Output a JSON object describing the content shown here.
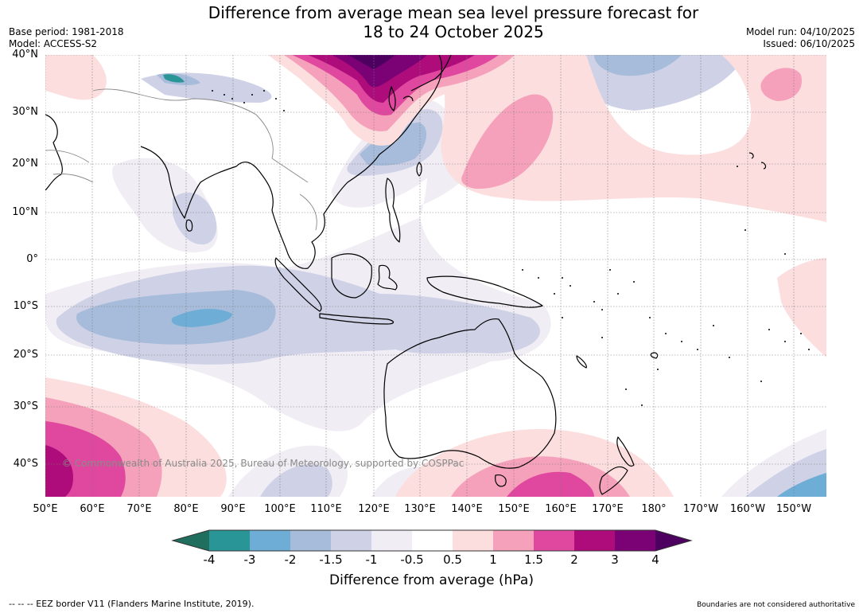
{
  "title": {
    "line1": "Difference from average mean sea level pressure forecast for",
    "line2": "18 to 24 October 2025"
  },
  "meta_left": {
    "base_period": "Base period: 1981-2018",
    "model": "Model: ACCESS-S2"
  },
  "meta_right": {
    "model_run": "Model run: 04/10/2025",
    "issued": "Issued: 06/10/2025"
  },
  "map": {
    "lat_labels": [
      "40°N",
      "30°N",
      "20°N",
      "10°N",
      "0°",
      "10°S",
      "20°S",
      "30°S",
      "40°S"
    ],
    "lon_labels": [
      "50°E",
      "60°E",
      "70°E",
      "80°E",
      "90°E",
      "100°E",
      "110°E",
      "120°E",
      "130°E",
      "140°E",
      "150°E",
      "160°E",
      "170°E",
      "180°",
      "170°W",
      "160°W",
      "150°W"
    ],
    "copyright": "© Commonwealth of Australia 2025, Bureau of Meteorology, supported by COSPPac"
  },
  "colorbar": {
    "title": "Difference from average (hPa)",
    "tick_labels": [
      "-4",
      "-3",
      "-2",
      "-1.5",
      "-1",
      "-0.5",
      "0.5",
      "1",
      "1.5",
      "2",
      "3",
      "4"
    ],
    "colors": [
      "#1f6e5e",
      "#2a9596",
      "#6eadd6",
      "#a7bcda",
      "#cfd1e6",
      "#f0edf4",
      "#ffffff",
      "#fcdedf",
      "#f6a1bb",
      "#e0489f",
      "#ae0c7b",
      "#7a0275",
      "#4d0060"
    ]
  },
  "footer": {
    "left": "--  --  -- EEZ border V11 (Flanders Marine Institute, 2019).",
    "right": "Boundaries are not considered authoritative"
  }
}
